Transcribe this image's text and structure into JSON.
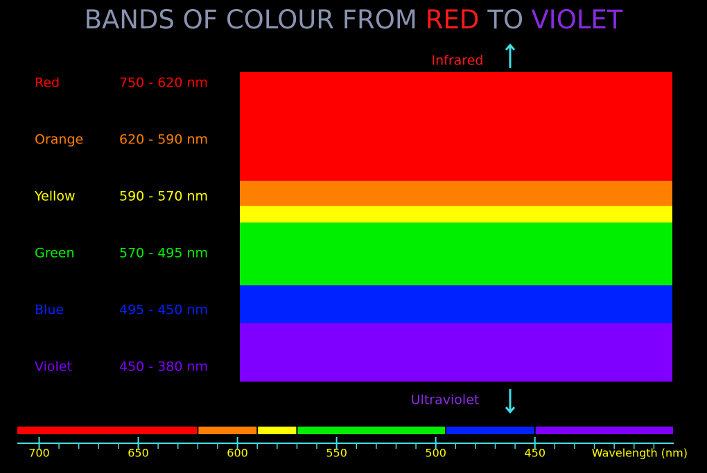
{
  "chart_data": {
    "type": "spectrum",
    "title_parts": [
      {
        "text": "BANDS OF COLOUR FROM",
        "color": "#8a93b0"
      },
      {
        "text": "RED",
        "color": "#ff1a1a"
      },
      {
        "text": "TO",
        "color": "#8a93b0"
      },
      {
        "text": "VIOLET",
        "color": "#8a2be2"
      }
    ],
    "bands": [
      {
        "name": "Red",
        "range_label": "750 - 620 nm",
        "from": 750,
        "to": 620,
        "color": "#ff0000"
      },
      {
        "name": "Orange",
        "range_label": "620 - 590 nm",
        "from": 620,
        "to": 590,
        "color": "#ff8000"
      },
      {
        "name": "Yellow",
        "range_label": "590 - 570 nm",
        "from": 590,
        "to": 570,
        "color": "#ffff00"
      },
      {
        "name": "Green",
        "range_label": "570 - 495 nm",
        "from": 570,
        "to": 495,
        "color": "#00ee00"
      },
      {
        "name": "Blue",
        "range_label": "495 - 450 nm",
        "from": 495,
        "to": 450,
        "color": "#0022ff"
      },
      {
        "name": "Violet",
        "range_label": "450 - 380 nm",
        "from": 450,
        "to": 380,
        "color": "#8000ff"
      }
    ],
    "top_label": "Infrared",
    "bottom_label": "Ultraviolet",
    "xlabel": "Wavelength (nm)",
    "axis_color": "#40e0e8",
    "xlim": [
      711,
      380
    ],
    "xticks": [
      700,
      650,
      600,
      550,
      500,
      450
    ],
    "xminor_ticks": [
      690,
      680,
      670,
      660,
      640,
      630,
      620,
      610,
      590,
      580,
      570,
      560,
      540,
      530,
      520,
      510,
      490,
      480,
      470,
      460,
      440,
      430,
      420,
      410,
      400,
      390
    ]
  }
}
